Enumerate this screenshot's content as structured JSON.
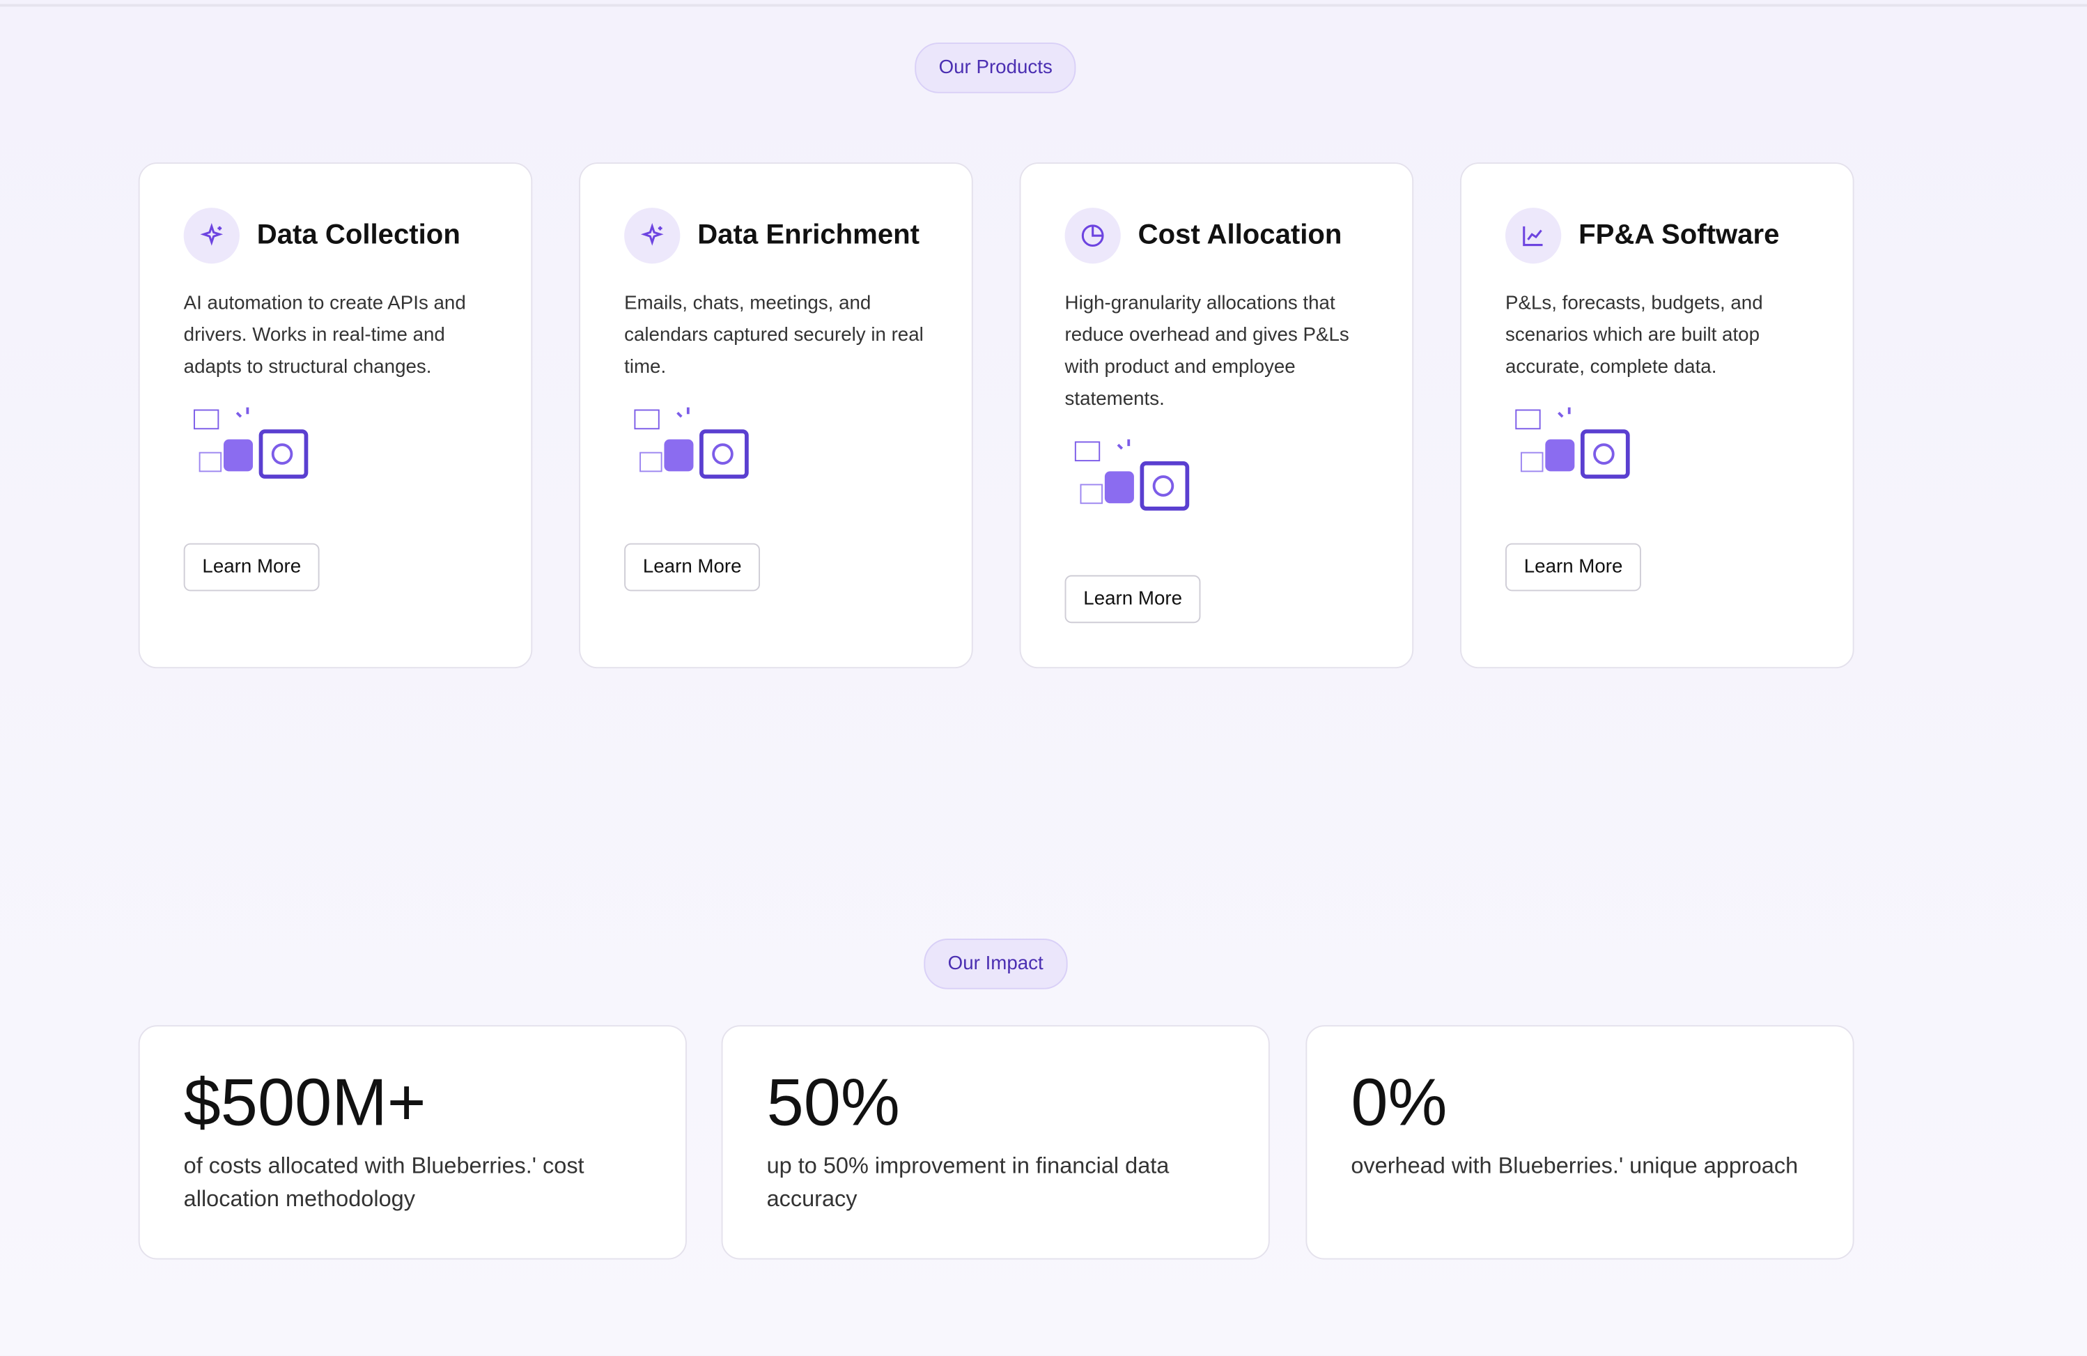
{
  "products_section": {
    "label": "Our Products",
    "products": [
      {
        "title": "Data Collection",
        "description": "AI automation to create APIs and drivers. Works in real-time and adapts to structural changes.",
        "button": "Learn More"
      },
      {
        "title": "Data Enrichment",
        "description": "Emails, chats, meetings, and calendars captured securely in real time.",
        "button": "Learn More"
      },
      {
        "title": "Cost Allocation",
        "description": "High-granularity allocations that reduce overhead and gives P&Ls with product and employee statements.",
        "button": "Learn More"
      },
      {
        "title": "FP&A Software",
        "description": "P&Ls, forecasts, budgets, and scenarios which are built atop accurate, complete data.",
        "button": "Learn More"
      }
    ]
  },
  "impact_section": {
    "label": "Our Impact",
    "stats": [
      {
        "value": "$500M+",
        "description": "of costs allocated with Blueberries.' cost allocation methodology"
      },
      {
        "value": "50%",
        "description": "up to 50% improvement in financial data accuracy"
      },
      {
        "value": "0%",
        "description": "overhead with Blueberries.' unique approach"
      }
    ]
  }
}
